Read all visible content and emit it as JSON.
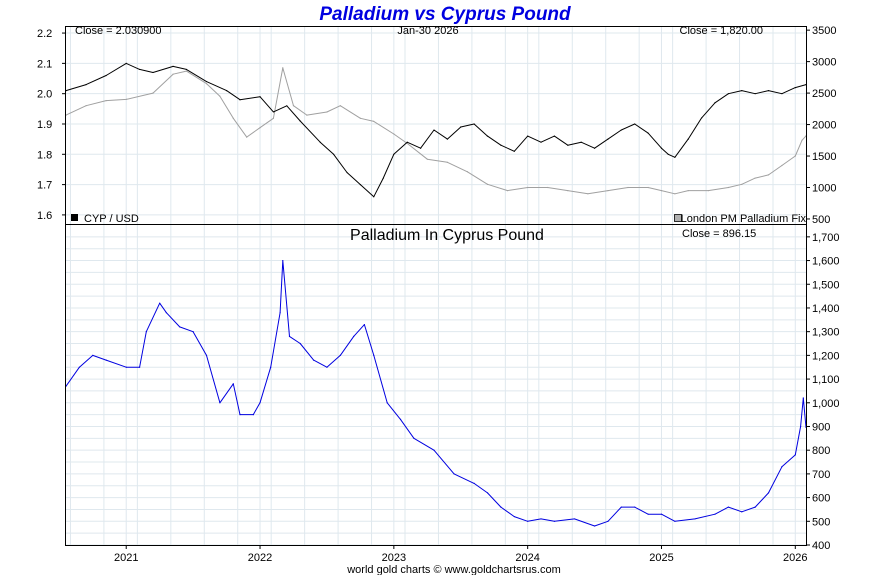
{
  "chart_data": [
    {
      "type": "line",
      "title": "Palladium vs Cyprus Pound",
      "date_label": "Jan-30  2026",
      "left_readout": "Close = 2.030900",
      "right_readout": "Close = 1,820.00",
      "x_ticks": [
        "2021",
        "2022",
        "2023",
        "2024",
        "2025",
        "2026"
      ],
      "xlim": [
        "2020-07",
        "2026-02"
      ],
      "left_axis": {
        "ylim": [
          1.57,
          2.22
        ],
        "ticks": [
          "1.6",
          "1.7",
          "1.8",
          "1.9",
          "2.0",
          "2.1",
          "2.2"
        ]
      },
      "right_axis": {
        "ylim": [
          420,
          3550
        ],
        "ticks": [
          "500",
          "1000",
          "1500",
          "2000",
          "2500",
          "3000",
          "3500"
        ]
      },
      "grid": true,
      "legend": [
        {
          "label": "CYP / USD",
          "color": "#000000",
          "placement": "bottom-left"
        },
        {
          "label": "London PM Palladium Fix",
          "color": "#a0a0a0",
          "placement": "bottom-right"
        }
      ],
      "series": [
        {
          "name": "CYP / USD",
          "axis": "left",
          "color": "#000000",
          "x": [
            2020.55,
            2020.7,
            2020.85,
            2021.0,
            2021.1,
            2021.2,
            2021.35,
            2021.45,
            2021.6,
            2021.75,
            2021.85,
            2022.0,
            2022.1,
            2022.2,
            2022.3,
            2022.45,
            2022.55,
            2022.65,
            2022.75,
            2022.85,
            2022.92,
            2023.0,
            2023.1,
            2023.2,
            2023.3,
            2023.4,
            2023.5,
            2023.6,
            2023.7,
            2023.8,
            2023.9,
            2024.0,
            2024.1,
            2024.2,
            2024.3,
            2024.4,
            2024.5,
            2024.6,
            2024.7,
            2024.8,
            2024.9,
            2025.0,
            2025.05,
            2025.1,
            2025.2,
            2025.3,
            2025.4,
            2025.5,
            2025.6,
            2025.7,
            2025.8,
            2025.9,
            2026.0,
            2026.08
          ],
          "values": [
            2.01,
            2.03,
            2.06,
            2.1,
            2.08,
            2.07,
            2.09,
            2.08,
            2.04,
            2.01,
            1.98,
            1.99,
            1.94,
            1.96,
            1.91,
            1.84,
            1.8,
            1.74,
            1.7,
            1.66,
            1.72,
            1.8,
            1.84,
            1.82,
            1.88,
            1.85,
            1.89,
            1.9,
            1.86,
            1.83,
            1.81,
            1.86,
            1.84,
            1.86,
            1.83,
            1.84,
            1.82,
            1.85,
            1.88,
            1.9,
            1.87,
            1.82,
            1.8,
            1.79,
            1.85,
            1.92,
            1.97,
            2.0,
            2.01,
            2.0,
            2.01,
            2.0,
            2.02,
            2.03
          ]
        },
        {
          "name": "London PM Palladium Fix",
          "axis": "right",
          "color": "#a0a0a0",
          "x": [
            2020.55,
            2020.7,
            2020.85,
            2021.0,
            2021.2,
            2021.35,
            2021.45,
            2021.6,
            2021.7,
            2021.8,
            2021.9,
            2022.0,
            2022.1,
            2022.17,
            2022.25,
            2022.35,
            2022.5,
            2022.6,
            2022.75,
            2022.85,
            2023.0,
            2023.1,
            2023.25,
            2023.4,
            2023.55,
            2023.7,
            2023.85,
            2024.0,
            2024.15,
            2024.3,
            2024.45,
            2024.6,
            2024.75,
            2024.9,
            2025.0,
            2025.1,
            2025.2,
            2025.35,
            2025.5,
            2025.6,
            2025.7,
            2025.8,
            2025.9,
            2026.0,
            2026.05,
            2026.08
          ],
          "values": [
            2150,
            2300,
            2380,
            2400,
            2500,
            2800,
            2850,
            2650,
            2450,
            2100,
            1800,
            1950,
            2100,
            2900,
            2300,
            2150,
            2200,
            2300,
            2100,
            2050,
            1850,
            1700,
            1450,
            1400,
            1250,
            1050,
            950,
            1000,
            1000,
            950,
            900,
            950,
            1000,
            1000,
            950,
            900,
            950,
            950,
            1000,
            1050,
            1150,
            1200,
            1350,
            1500,
            1750,
            1820
          ]
        }
      ]
    },
    {
      "type": "line",
      "title": "Palladium In Cyprus Pound",
      "readout": "Close = 896.15",
      "x_ticks": [
        "2021",
        "2022",
        "2023",
        "2024",
        "2025",
        "2026"
      ],
      "xlim": [
        "2020-07",
        "2026-02"
      ],
      "ylim": [
        400,
        1750
      ],
      "y_ticks": [
        "400",
        "500",
        "600",
        "700",
        "800",
        "900",
        "1,000",
        "1,100",
        "1,200",
        "1,300",
        "1,400",
        "1,500",
        "1,600",
        "1,700"
      ],
      "grid": true,
      "series": [
        {
          "name": "Palladium In Cyprus Pound",
          "color": "#0000e0",
          "x": [
            2020.55,
            2020.65,
            2020.75,
            2020.85,
            2021.0,
            2021.1,
            2021.15,
            2021.25,
            2021.3,
            2021.4,
            2021.5,
            2021.6,
            2021.7,
            2021.8,
            2021.85,
            2021.95,
            2022.0,
            2022.08,
            2022.15,
            2022.17,
            2022.22,
            2022.3,
            2022.4,
            2022.5,
            2022.6,
            2022.7,
            2022.78,
            2022.85,
            2022.95,
            2023.05,
            2023.15,
            2023.3,
            2023.45,
            2023.6,
            2023.7,
            2023.8,
            2023.9,
            2024.0,
            2024.1,
            2024.2,
            2024.35,
            2024.5,
            2024.6,
            2024.7,
            2024.8,
            2024.9,
            2025.0,
            2025.1,
            2025.25,
            2025.4,
            2025.5,
            2025.6,
            2025.7,
            2025.8,
            2025.9,
            2026.0,
            2026.04,
            2026.06,
            2026.08
          ],
          "values": [
            1070,
            1150,
            1200,
            1180,
            1150,
            1150,
            1300,
            1420,
            1380,
            1320,
            1300,
            1200,
            1000,
            1080,
            950,
            950,
            1000,
            1150,
            1380,
            1600,
            1280,
            1250,
            1180,
            1150,
            1200,
            1280,
            1330,
            1200,
            1000,
            930,
            850,
            800,
            700,
            660,
            620,
            560,
            520,
            500,
            510,
            500,
            510,
            480,
            500,
            560,
            560,
            530,
            530,
            500,
            510,
            530,
            560,
            540,
            560,
            620,
            730,
            780,
            900,
            1020,
            896
          ]
        }
      ]
    }
  ],
  "footer": "world gold charts © www.goldchartsrus.com"
}
